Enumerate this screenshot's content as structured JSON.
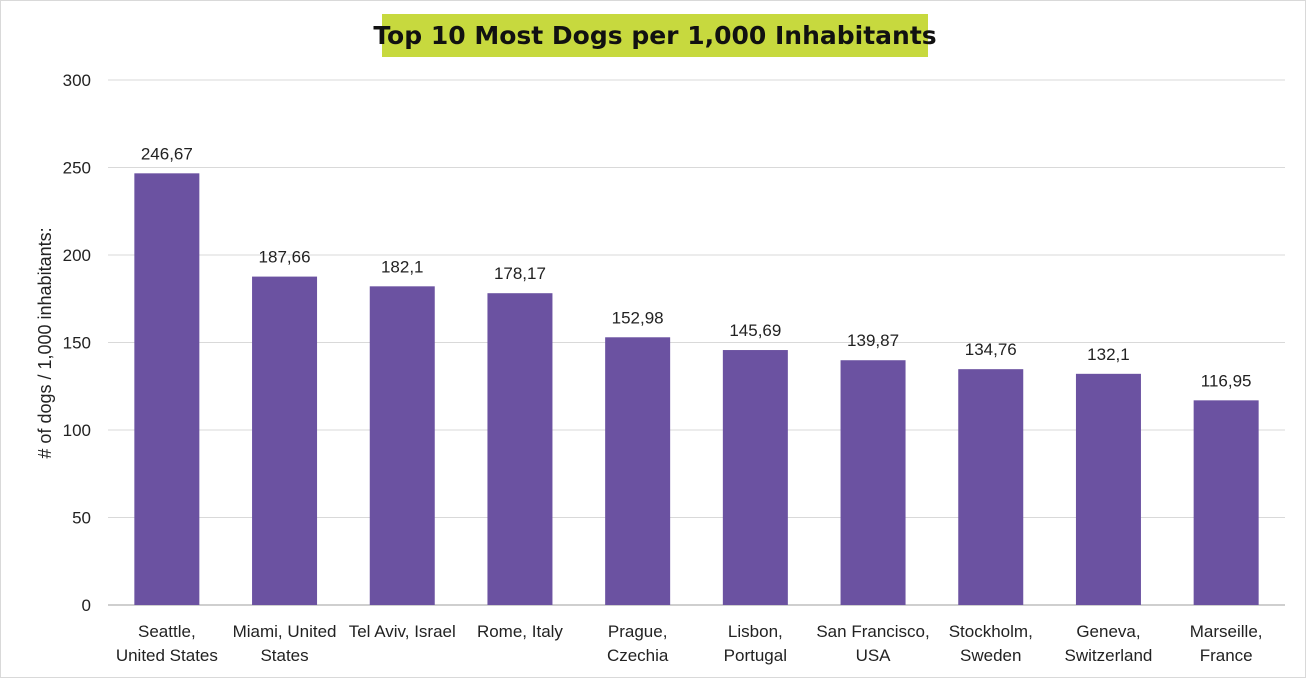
{
  "colors": {
    "bar": "#6b52a1",
    "title_background": "#c7d93e",
    "grid": "#d9d9d9",
    "axis": "#bfbfbf"
  },
  "chart_data": {
    "type": "bar",
    "title": "Top 10 Most Dogs per 1,000 Inhabitants",
    "xlabel": "",
    "ylabel": "# of dogs / 1,000 inhabitants:",
    "ylim": [
      0,
      300
    ],
    "yticks": [
      0,
      50,
      100,
      150,
      200,
      250,
      300
    ],
    "grid": true,
    "categories": [
      [
        "Seattle,",
        "United States"
      ],
      [
        "Miami, United",
        "States"
      ],
      [
        "Tel Aviv, Israel"
      ],
      [
        "Rome, Italy"
      ],
      [
        "Prague,",
        "Czechia"
      ],
      [
        "Lisbon,",
        "Portugal"
      ],
      [
        "San Francisco,",
        "USA"
      ],
      [
        "Stockholm,",
        "Sweden"
      ],
      [
        "Geneva,",
        "Switzerland"
      ],
      [
        "Marseille,",
        "France"
      ]
    ],
    "values": [
      246.67,
      187.66,
      182.1,
      178.17,
      152.98,
      145.69,
      139.87,
      134.76,
      132.1,
      116.95
    ],
    "data_labels": [
      "246,67",
      "187,66",
      "182,1",
      "178,17",
      "152,98",
      "145,69",
      "139,87",
      "134,76",
      "132,1",
      "116,95"
    ]
  }
}
